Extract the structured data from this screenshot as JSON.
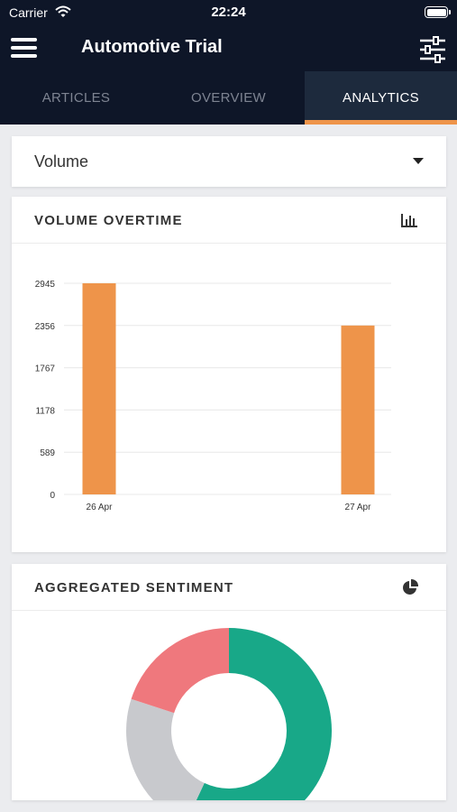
{
  "status_bar": {
    "carrier": "Carrier",
    "time": "22:24"
  },
  "header": {
    "title": "Automotive Trial"
  },
  "tabs": [
    {
      "label": "ARTICLES",
      "active": false
    },
    {
      "label": "OVERVIEW",
      "active": false
    },
    {
      "label": "ANALYTICS",
      "active": true
    }
  ],
  "metric_select": {
    "value": "Volume"
  },
  "volume_card": {
    "title": "VOLUME OVERTIME",
    "icon": "bar-chart-icon",
    "chart_data": {
      "type": "bar",
      "categories": [
        "26 Apr",
        "27 Apr"
      ],
      "values": [
        2945,
        2356
      ],
      "yticks": [
        0,
        589,
        1178,
        1767,
        2356,
        2945
      ],
      "ylim": [
        0,
        2945
      ],
      "grid": true,
      "bar_color": "#ee944a"
    }
  },
  "sentiment_card": {
    "title": "AGGREGATED SENTIMENT",
    "icon": "pie-chart-icon",
    "chart_data": {
      "type": "pie",
      "style": "donut",
      "slices": [
        {
          "share": 57,
          "color": "#18a888"
        },
        {
          "share": 23,
          "color": "#c8c9cd"
        },
        {
          "share": 20,
          "color": "#ef787d"
        }
      ]
    }
  },
  "colors": {
    "navbar": "#0e1628",
    "active_tab": "#1d2a3d",
    "accent": "#ee944a"
  }
}
